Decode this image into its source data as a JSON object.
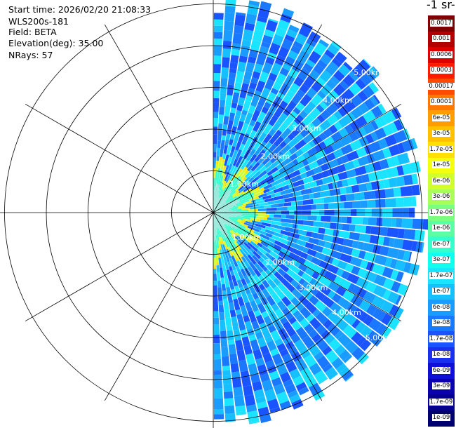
{
  "info": {
    "start_time": "Start time: 2026/02/20 21:08:33",
    "instrument": "WLS200s-181",
    "field": "Field: BETA",
    "elevation": "Elevation(deg): 35.00",
    "nrays": "NRays: 57"
  },
  "colorbar": {
    "title": "-1 sr-",
    "labels": [
      "0.0017",
      "0.001",
      "0.0006",
      "0.0003",
      "0.00017",
      "0.0001",
      "6e-05",
      "3e-05",
      "1.7e-05",
      "1e-05",
      "6e-06",
      "3e-06",
      "1.7e-06",
      "1e-06",
      "6e-07",
      "3e-07",
      "1.7e-07",
      "1e-07",
      "6e-08",
      "3e-08",
      "1.7e-08",
      "1e-08",
      "6e-09",
      "3e-09",
      "1.7e-09",
      "1e-09"
    ],
    "colors": [
      "#7f0000",
      "#b00000",
      "#dd0000",
      "#ff1a00",
      "#ff4a00",
      "#ff7800",
      "#ff9c00",
      "#ffc000",
      "#ffe000",
      "#f4ff10",
      "#d0ff30",
      "#a8ff5a",
      "#7cff7c",
      "#5affa4",
      "#35ffcc",
      "#10ffee",
      "#1ae4ff",
      "#16c0ff",
      "#1a9cff",
      "#1a78ff",
      "#1a54ff",
      "#1a30f0",
      "#0e10d8",
      "#0a00b0",
      "#060090",
      "#00006e"
    ]
  },
  "chart_data": {
    "type": "polar-ppi",
    "field": "BETA",
    "elevation_deg": 35.0,
    "nrays": 57,
    "azimuth_range_deg": [
      0,
      180
    ],
    "range_rings_km": [
      1,
      2,
      3,
      4,
      5
    ],
    "range_labels": [
      "1.00km",
      "2.00km",
      "3.00km",
      "4.00km",
      "5.00km"
    ],
    "max_range_km": 5.2,
    "spoke_step_deg": 30,
    "near_field_range_km": 1.15
  }
}
